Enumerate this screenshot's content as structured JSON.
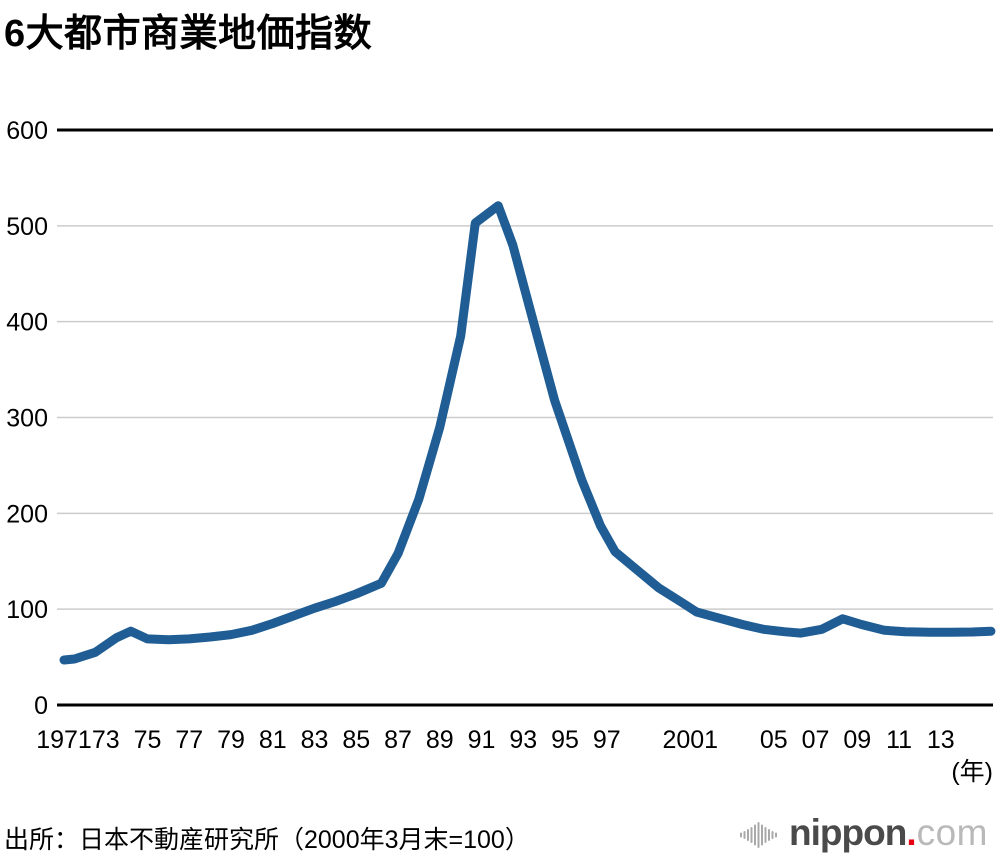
{
  "title": "6大都市商業地価指数",
  "chart_data": {
    "type": "line",
    "title": "6大都市商業地価指数",
    "x_axis_unit_label": "(年)",
    "ylim": [
      0,
      600
    ],
    "xlim": [
      1971,
      2015.5
    ],
    "grid": "horizontal",
    "legend": "none",
    "y_ticks": [
      0,
      100,
      200,
      300,
      400,
      500,
      600
    ],
    "x_ticks": [
      {
        "year": 1971,
        "label": "1971"
      },
      {
        "year": 1973,
        "label": "73"
      },
      {
        "year": 1975,
        "label": "75"
      },
      {
        "year": 1977,
        "label": "77"
      },
      {
        "year": 1979,
        "label": "79"
      },
      {
        "year": 1981,
        "label": "81"
      },
      {
        "year": 1983,
        "label": "83"
      },
      {
        "year": 1985,
        "label": "85"
      },
      {
        "year": 1987,
        "label": "87"
      },
      {
        "year": 1989,
        "label": "89"
      },
      {
        "year": 1991,
        "label": "91"
      },
      {
        "year": 1993,
        "label": "93"
      },
      {
        "year": 1995,
        "label": "95"
      },
      {
        "year": 1997,
        "label": "97"
      },
      {
        "year": 2001,
        "label": "2001"
      },
      {
        "year": 2005,
        "label": "05"
      },
      {
        "year": 2007,
        "label": "07"
      },
      {
        "year": 2009,
        "label": "09"
      },
      {
        "year": 2011,
        "label": "11"
      },
      {
        "year": 2013,
        "label": "13"
      }
    ],
    "series": [
      {
        "name": "6大都市商業地価指数",
        "points": [
          [
            1971,
            47
          ],
          [
            1971.5,
            48
          ],
          [
            1972.5,
            55
          ],
          [
            1973.5,
            70
          ],
          [
            1974.2,
            77
          ],
          [
            1975,
            69
          ],
          [
            1976,
            68
          ],
          [
            1977,
            69
          ],
          [
            1978,
            71
          ],
          [
            1979,
            73.5
          ],
          [
            1980,
            78
          ],
          [
            1981,
            85
          ],
          [
            1982,
            93
          ],
          [
            1983,
            101
          ],
          [
            1984,
            108
          ],
          [
            1985,
            116
          ],
          [
            1986.2,
            127
          ],
          [
            1987,
            158
          ],
          [
            1988,
            215
          ],
          [
            1989,
            290
          ],
          [
            1990,
            385
          ],
          [
            1990.7,
            503
          ],
          [
            1991.8,
            521
          ],
          [
            1992.5,
            480
          ],
          [
            1993.3,
            415
          ],
          [
            1994.5,
            318
          ],
          [
            1995.8,
            235
          ],
          [
            1996.7,
            187
          ],
          [
            1997.4,
            160
          ],
          [
            1998.5,
            140
          ],
          [
            1999.5,
            122
          ],
          [
            2000.6,
            107
          ],
          [
            2001.3,
            97
          ],
          [
            2002.5,
            90
          ],
          [
            2003.5,
            84
          ],
          [
            2004.5,
            79
          ],
          [
            2005.5,
            76.5
          ],
          [
            2006.3,
            75
          ],
          [
            2007.3,
            79
          ],
          [
            2008.3,
            90
          ],
          [
            2009.2,
            84
          ],
          [
            2010.3,
            78
          ],
          [
            2011.3,
            76.5
          ],
          [
            2012.5,
            76
          ],
          [
            2013.5,
            76
          ],
          [
            2014.5,
            76.2
          ],
          [
            2015.4,
            77
          ]
        ]
      }
    ],
    "colors": {
      "line": "#1f5d94",
      "grid": "#cccccc",
      "axis_frame": "#000000",
      "text": "#000000",
      "background": "#ffffff"
    }
  },
  "footer": {
    "source": "出所：日本不動産研究所（2000年3月末=100）",
    "logo": {
      "icon": "audio-wave-icon",
      "name": "nippon",
      "dot": ".",
      "tld": "com",
      "name_color": "#4a4a4a",
      "dot_color": "#e60012",
      "tld_color": "#b9b9b9",
      "icon_color": "#a9a9a9"
    }
  }
}
